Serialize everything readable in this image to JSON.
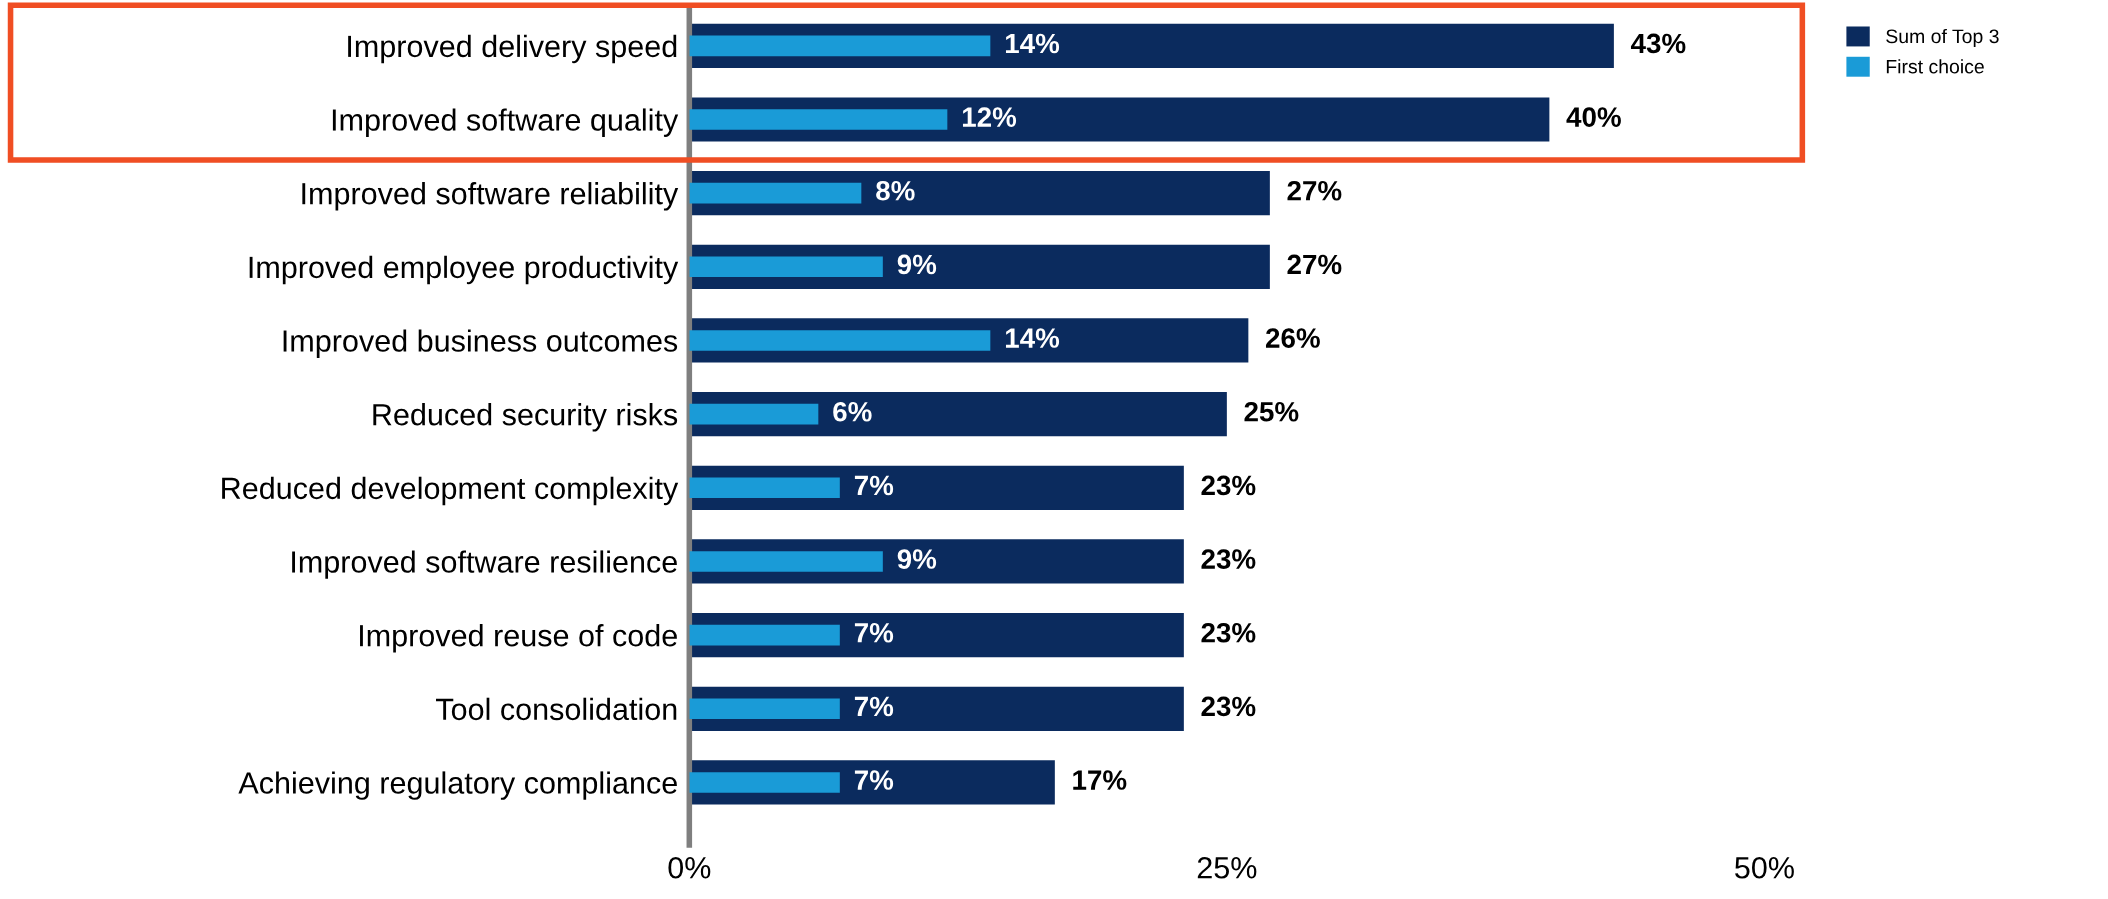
{
  "chart_data": {
    "type": "bar",
    "orientation": "horizontal",
    "categories": [
      "Improved delivery speed",
      "Improved software quality",
      "Improved software reliability",
      "Improved employee productivity",
      "Improved business outcomes",
      "Reduced security risks",
      "Reduced development complexity",
      "Improved software resilience",
      "Improved reuse of code",
      "Tool consolidation",
      "Achieving regulatory compliance"
    ],
    "series": [
      {
        "name": "Sum of Top 3",
        "color": "#0b2b5e",
        "values": [
          43,
          40,
          27,
          27,
          26,
          25,
          23,
          23,
          23,
          23,
          17
        ],
        "value_labels": [
          "43%",
          "40%",
          "27%",
          "27%",
          "26%",
          "25%",
          "23%",
          "23%",
          "23%",
          "23%",
          "17%"
        ]
      },
      {
        "name": "First choice",
        "color": "#1a9bd7",
        "values": [
          14,
          12,
          8,
          9,
          14,
          6,
          7,
          9,
          7,
          7,
          7
        ],
        "value_labels": [
          "14%",
          "12%",
          "8%",
          "9%",
          "14%",
          "6%",
          "7%",
          "9%",
          "7%",
          "7%",
          "7%"
        ]
      }
    ],
    "xlim": [
      0,
      50
    ],
    "xticks": [
      {
        "value": 0,
        "label": "0%"
      },
      {
        "value": 25,
        "label": "25%"
      },
      {
        "value": 50,
        "label": "50%"
      }
    ],
    "legend": "top right",
    "grid": false
  }
}
